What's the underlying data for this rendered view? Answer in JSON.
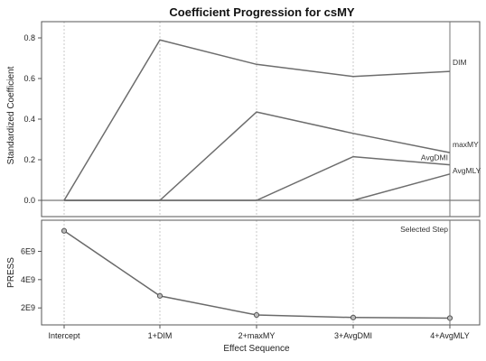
{
  "chart_data": {
    "type": "line",
    "title": "Coefficient Progression for csMY",
    "xlabel": "Effect Sequence",
    "categories": [
      "Intercept",
      "1+DIM",
      "2+maxMY",
      "3+AvgDMI",
      "4+AvgMLY"
    ],
    "panels": [
      {
        "ylabel": "Standardized Coefficient",
        "ylim": [
          -0.08,
          0.88
        ],
        "yticks": [
          "0.0",
          "0.2",
          "0.4",
          "0.6",
          "0.8"
        ],
        "series": [
          {
            "name": "DIM",
            "values": [
              0.0,
              0.79,
              0.67,
              0.61,
              0.635
            ]
          },
          {
            "name": "maxMY",
            "values": [
              0.0,
              0.0,
              0.435,
              0.33,
              0.235
            ]
          },
          {
            "name": "AvgDMI",
            "values": [
              0.0,
              0.0,
              0.0,
              0.215,
              0.175
            ]
          },
          {
            "name": "AvgMLY",
            "values": [
              0.0,
              0.0,
              0.0,
              0.0,
              0.13
            ]
          }
        ]
      },
      {
        "ylabel": "PRESS",
        "ylim": [
          800000000,
          8200000000
        ],
        "yticks": [
          "2E9",
          "4E9",
          "6E9"
        ],
        "series": [
          {
            "values": [
              7450000000,
              2850000000,
              1500000000,
              1320000000,
              1280000000
            ]
          }
        ]
      }
    ],
    "selected_step": "Selected Step",
    "grid": "vertical dashed",
    "colors": {
      "lines": "#6d6d6d",
      "frame": "#555555",
      "grid": "#c8c8c8"
    }
  }
}
